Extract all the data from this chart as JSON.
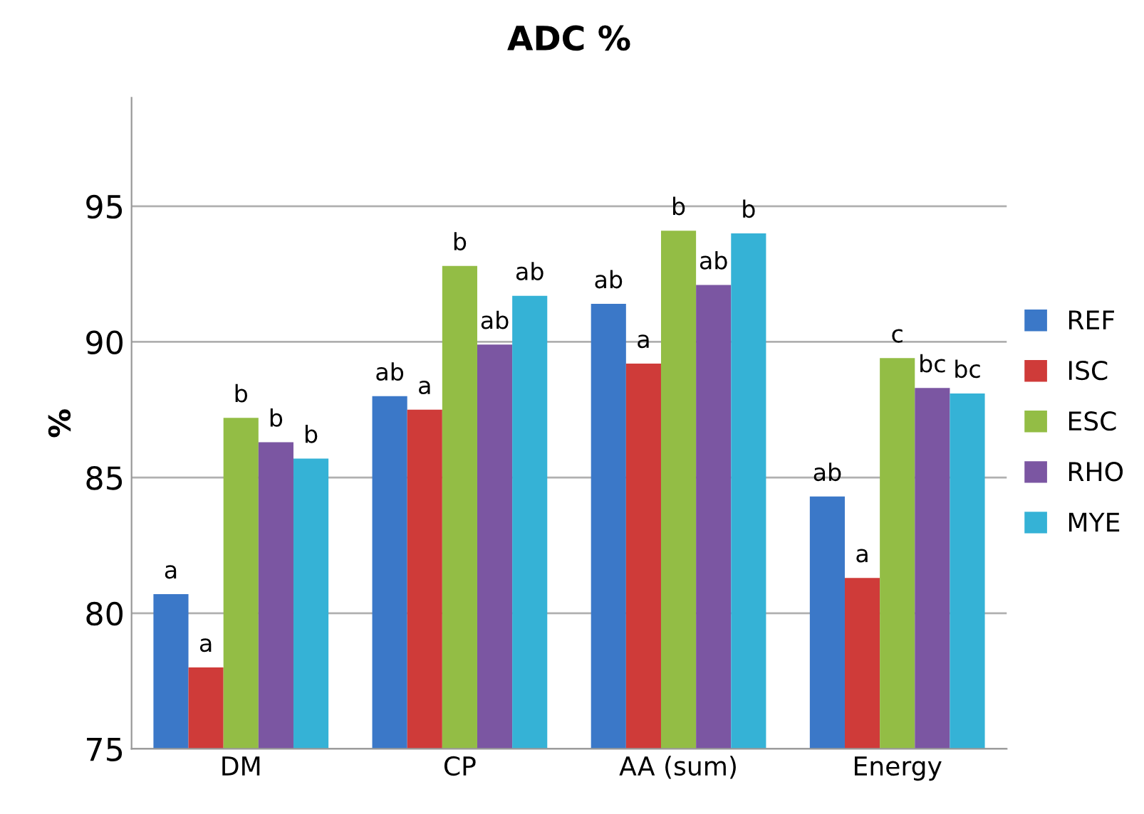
{
  "chart_data": {
    "type": "bar",
    "title": "ADC %",
    "ylabel": "%",
    "categories": [
      "DM",
      "CP",
      "AA (sum)",
      "Energy"
    ],
    "series": [
      {
        "name": "REF",
        "color": "#3b78c8",
        "values": [
          80.7,
          88.0,
          91.4,
          84.3
        ],
        "value_labels": [
          "a",
          "ab",
          "ab",
          "ab"
        ]
      },
      {
        "name": "ISC",
        "color": "#cf3b39",
        "values": [
          78.0,
          87.5,
          89.2,
          81.3
        ],
        "value_labels": [
          "a",
          "a",
          "a",
          "a"
        ]
      },
      {
        "name": "ESC",
        "color": "#93bd45",
        "values": [
          87.2,
          92.8,
          94.1,
          89.4
        ],
        "value_labels": [
          "b",
          "b",
          "b",
          "c"
        ]
      },
      {
        "name": "RHO",
        "color": "#7b56a2",
        "values": [
          86.3,
          89.9,
          92.1,
          88.3
        ],
        "value_labels": [
          "b",
          "ab",
          "ab",
          "bc"
        ]
      },
      {
        "name": "MYE",
        "color": "#35b2d6",
        "values": [
          85.7,
          91.7,
          94.0,
          88.1
        ],
        "value_labels": [
          "b",
          "ab",
          "b",
          "bc"
        ]
      }
    ],
    "ylim": [
      75,
      99
    ],
    "yticks": [
      75,
      80,
      85,
      90,
      95
    ],
    "grid": "y",
    "legend": "right"
  }
}
